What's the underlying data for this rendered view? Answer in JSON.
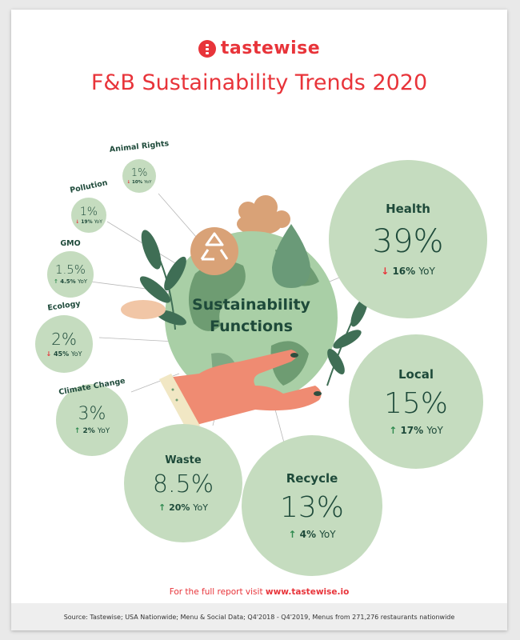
{
  "brand": {
    "name": "tastewise",
    "color": "#e8343a"
  },
  "title": "F&B Sustainability Trends 2020",
  "center_label": {
    "line1": "Sustainability",
    "line2": "Functions"
  },
  "chart_data": {
    "type": "bubble",
    "title": "F&B Sustainability Trends 2020",
    "items": [
      {
        "name": "Health",
        "value": 39,
        "pct": "39%",
        "yoy": 16,
        "yoy_text": "16%",
        "direction": "down"
      },
      {
        "name": "Local",
        "value": 15,
        "pct": "15%",
        "yoy": 17,
        "yoy_text": "17%",
        "direction": "up"
      },
      {
        "name": "Recycle",
        "value": 13,
        "pct": "13%",
        "yoy": 4,
        "yoy_text": "4%",
        "direction": "up"
      },
      {
        "name": "Waste",
        "value": 8.5,
        "pct": "8.5%",
        "yoy": 20,
        "yoy_text": "20%",
        "direction": "up"
      },
      {
        "name": "Climate Change",
        "value": 3,
        "pct": "3%",
        "yoy": 2,
        "yoy_text": "2%",
        "direction": "up"
      },
      {
        "name": "Ecology",
        "value": 2,
        "pct": "2%",
        "yoy": 45,
        "yoy_text": "45%",
        "direction": "down"
      },
      {
        "name": "GMO",
        "value": 1.5,
        "pct": "1.5%",
        "yoy": 4.5,
        "yoy_text": "4.5%",
        "direction": "up"
      },
      {
        "name": "Pollution",
        "value": 1,
        "pct": "1%",
        "yoy": 19,
        "yoy_text": "19%",
        "direction": "down"
      },
      {
        "name": "Animal Rights",
        "value": 1,
        "pct": "1%",
        "yoy": 10,
        "yoy_text": "10%",
        "direction": "down"
      }
    ],
    "yoy_unit": "YoY"
  },
  "colors": {
    "bubble": "#c5dcbf",
    "text": "#1e4a3a",
    "up": "#2f8a4f",
    "down": "#e8343a"
  },
  "footer": {
    "prefix": "For the full report visit ",
    "link": "www.tastewise.io"
  },
  "source": "Source:  Tastewise; USA Nationwide; Menu & Social Data; Q4'2018 - Q4'2019, Menus from 271,276 restaurants nationwide"
}
